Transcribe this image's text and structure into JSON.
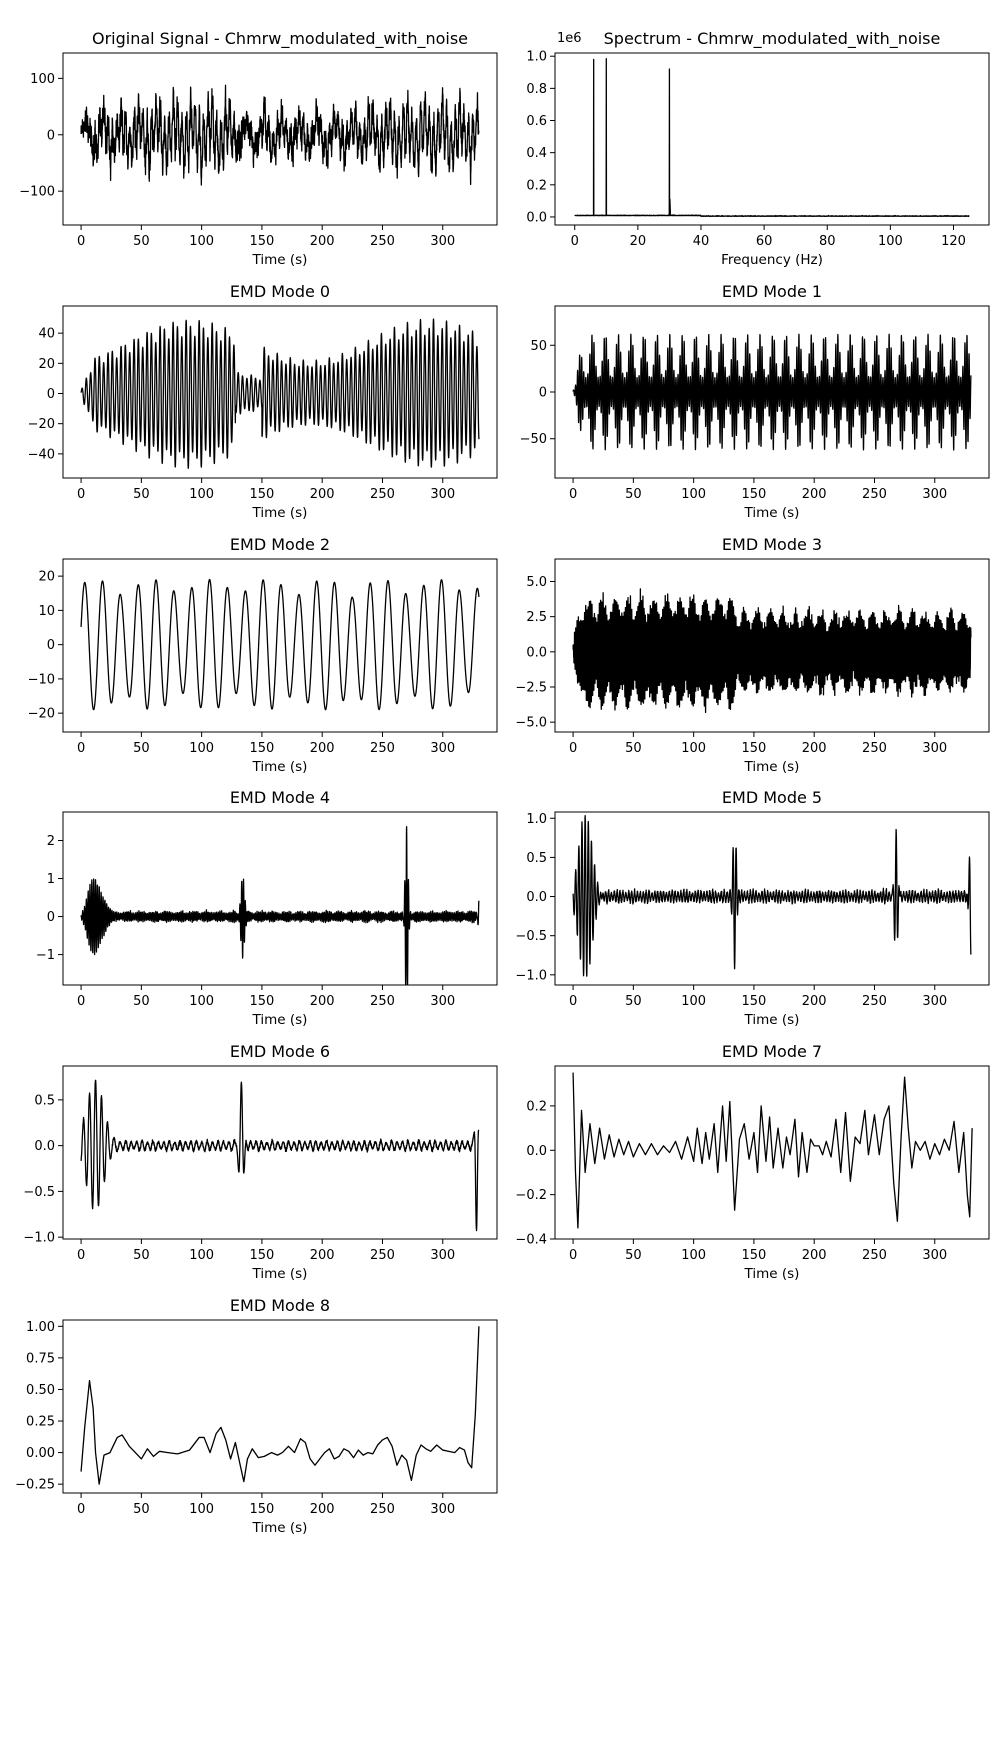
{
  "chart_data": [
    {
      "id": "orig",
      "type": "line",
      "title": "Original Signal - Chmrw_modulated_with_noise",
      "xlabel": "Time (s)",
      "ylabel": "",
      "xlim": [
        -15,
        345
      ],
      "ylim": [
        -160,
        145
      ],
      "xticks": [
        0,
        50,
        100,
        150,
        200,
        250,
        300
      ],
      "yticks": [
        -100,
        0,
        100
      ],
      "offset_text": "",
      "series": [
        {
          "kind": "sum",
          "T": 330,
          "components": [
            {
              "amp": 48,
              "period": 3.6,
              "env": "ripple:10.7:0.25"
            },
            {
              "amp": 24,
              "period": 14.8,
              "env": "slow"
            },
            {
              "amp": 20,
              "period": 1.03,
              "env": "segmented"
            },
            {
              "amp": 14,
              "period": 0,
              "env": "noise"
            }
          ]
        }
      ]
    },
    {
      "id": "spectrum",
      "type": "line",
      "title": "Spectrum - Chmrw_modulated_with_noise",
      "xlabel": "Frequency (Hz)",
      "ylabel": "",
      "xlim": [
        -6.25,
        131.25
      ],
      "ylim": [
        -0.05,
        1.02
      ],
      "xticks": [
        0,
        20,
        40,
        60,
        80,
        100,
        120
      ],
      "yticks": [
        0.0,
        0.2,
        0.4,
        0.6,
        0.8,
        1.0
      ],
      "offset_text": "1e6",
      "peaks": [
        {
          "freq": 6.0,
          "value": 0.98
        },
        {
          "freq": 10.0,
          "value": 0.985
        },
        {
          "freq": 30.0,
          "value": 0.92
        }
      ],
      "series": [
        {
          "kind": "spectrum",
          "fmax": 125
        }
      ]
    },
    {
      "id": "mode0",
      "type": "line",
      "title": "EMD Mode 0",
      "xlabel": "Time (s)",
      "ylabel": "",
      "xlim": [
        -15,
        345
      ],
      "ylim": [
        -56,
        58
      ],
      "xticks": [
        0,
        50,
        100,
        150,
        200,
        250,
        300
      ],
      "yticks": [
        -40,
        -20,
        0,
        20,
        40
      ],
      "offset_text": "",
      "series": [
        {
          "kind": "osc",
          "T": 330,
          "amp": 50,
          "period": 3.6,
          "env": "ripple:10.7:0.25"
        }
      ]
    },
    {
      "id": "mode1",
      "type": "line",
      "title": "EMD Mode 1",
      "xlabel": "Time (s)",
      "ylabel": "",
      "xlim": [
        -15,
        345
      ],
      "ylim": [
        -92,
        92
      ],
      "xticks": [
        0,
        50,
        100,
        150,
        200,
        250,
        300
      ],
      "yticks": [
        -50,
        0,
        50
      ],
      "offset_text": "",
      "series": [
        {
          "kind": "osc",
          "T": 330,
          "amp": 62,
          "period": 1.7,
          "env": "bursts:10.7"
        }
      ]
    },
    {
      "id": "mode2",
      "type": "line",
      "title": "EMD Mode 2",
      "xlabel": "Time (s)",
      "ylabel": "",
      "xlim": [
        -15,
        345
      ],
      "ylim": [
        -25.5,
        25
      ],
      "xticks": [
        0,
        50,
        100,
        150,
        200,
        250,
        300
      ],
      "yticks": [
        -20,
        -10,
        0,
        10,
        20
      ],
      "offset_text": "",
      "series": [
        {
          "kind": "osc",
          "T": 330,
          "amp": 19,
          "period": 14.8,
          "env": "slow"
        }
      ]
    },
    {
      "id": "mode3",
      "type": "line",
      "title": "EMD Mode 3",
      "xlabel": "Time (s)",
      "ylabel": "",
      "xlim": [
        -15,
        345
      ],
      "ylim": [
        -5.7,
        6.6
      ],
      "xticks": [
        0,
        50,
        100,
        150,
        200,
        250,
        300
      ],
      "yticks": [
        -5.0,
        -2.5,
        0.0,
        2.5,
        5.0
      ],
      "offset_text": "",
      "series": [
        {
          "kind": "osc",
          "T": 330,
          "amp": 4.2,
          "period": 1.03,
          "env": "segmented"
        }
      ]
    },
    {
      "id": "mode4",
      "type": "line",
      "title": "EMD Mode 4",
      "xlabel": "Time (s)",
      "ylabel": "",
      "xlim": [
        -15,
        345
      ],
      "ylim": [
        -1.8,
        2.75
      ],
      "xticks": [
        0,
        50,
        100,
        150,
        200,
        250,
        300
      ],
      "yticks": [
        -1,
        0,
        1,
        2
      ],
      "offset_text": "",
      "events": [
        {
          "t": 12,
          "amp": 1.0,
          "width": 8
        },
        {
          "t": 134,
          "amp": -1.0,
          "width": 2
        },
        {
          "t": 270,
          "amp": 2.5,
          "width": 1.6
        },
        {
          "t": 330,
          "amp": 0.5,
          "width": 1
        }
      ],
      "series": [
        {
          "kind": "noisy_events",
          "T": 330,
          "base": 0.12,
          "period": 1.4
        }
      ]
    },
    {
      "id": "mode5",
      "type": "line",
      "title": "EMD Mode 5",
      "xlabel": "Time (s)",
      "ylabel": "",
      "xlim": [
        -15,
        345
      ],
      "ylim": [
        -1.13,
        1.08
      ],
      "xticks": [
        0,
        50,
        100,
        150,
        200,
        250,
        300
      ],
      "yticks": [
        -1.0,
        -0.5,
        0.0,
        0.5,
        1.0
      ],
      "offset_text": "",
      "events": [
        {
          "t": 10,
          "amp": 1.0,
          "width": 8
        },
        {
          "t": 134,
          "amp": -0.85,
          "width": 2
        },
        {
          "t": 268,
          "amp": 0.9,
          "width": 2
        },
        {
          "t": 330,
          "amp": -0.75,
          "width": 2
        }
      ],
      "series": [
        {
          "kind": "noisy_events",
          "T": 330,
          "base": 0.07,
          "period": 2.4
        }
      ]
    },
    {
      "id": "mode6",
      "type": "line",
      "title": "EMD Mode 6",
      "xlabel": "Time (s)",
      "ylabel": "",
      "xlim": [
        -15,
        345
      ],
      "ylim": [
        -1.02,
        0.87
      ],
      "xticks": [
        0,
        50,
        100,
        150,
        200,
        250,
        300
      ],
      "yticks": [
        -1.0,
        -0.5,
        0.0,
        0.5
      ],
      "offset_text": "",
      "events": [
        {
          "t": 12,
          "amp": 0.75,
          "width": 10
        },
        {
          "t": 133,
          "amp": 0.7,
          "width": 2.5
        },
        {
          "t": 328,
          "amp": -0.9,
          "width": 1.5
        }
      ],
      "series": [
        {
          "kind": "noisy_events",
          "T": 330,
          "base": 0.05,
          "period": 4.5
        }
      ]
    },
    {
      "id": "mode7",
      "type": "line",
      "title": "EMD Mode 7",
      "xlabel": "Time (s)",
      "ylabel": "",
      "xlim": [
        -15,
        345
      ],
      "ylim": [
        -0.4,
        0.38
      ],
      "xticks": [
        0,
        50,
        100,
        150,
        200,
        250,
        300
      ],
      "yticks": [
        -0.4,
        -0.2,
        0.0,
        0.2
      ],
      "offset_text": "",
      "points": [
        [
          0,
          0.35
        ],
        [
          2,
          -0.1
        ],
        [
          4,
          -0.35
        ],
        [
          7,
          0.18
        ],
        [
          10,
          -0.1
        ],
        [
          14,
          0.12
        ],
        [
          18,
          -0.06
        ],
        [
          22,
          0.1
        ],
        [
          26,
          -0.04
        ],
        [
          30,
          0.07
        ],
        [
          34,
          -0.03
        ],
        [
          38,
          0.05
        ],
        [
          42,
          -0.02
        ],
        [
          46,
          0.04
        ],
        [
          50,
          -0.03
        ],
        [
          55,
          0.03
        ],
        [
          60,
          -0.02
        ],
        [
          65,
          0.03
        ],
        [
          70,
          -0.02
        ],
        [
          75,
          0.02
        ],
        [
          80,
          -0.01
        ],
        [
          85,
          0.04
        ],
        [
          90,
          -0.04
        ],
        [
          95,
          0.06
        ],
        [
          100,
          -0.05
        ],
        [
          103,
          0.1
        ],
        [
          107,
          -0.06
        ],
        [
          110,
          0.08
        ],
        [
          113,
          -0.04
        ],
        [
          117,
          0.12
        ],
        [
          120,
          -0.1
        ],
        [
          124,
          0.2
        ],
        [
          127,
          -0.05
        ],
        [
          130,
          0.22
        ],
        [
          134,
          -0.27
        ],
        [
          138,
          0.05
        ],
        [
          142,
          0.12
        ],
        [
          146,
          -0.04
        ],
        [
          150,
          0.08
        ],
        [
          153,
          -0.1
        ],
        [
          156,
          0.2
        ],
        [
          160,
          -0.05
        ],
        [
          163,
          0.15
        ],
        [
          166,
          -0.08
        ],
        [
          170,
          0.1
        ],
        [
          174,
          -0.08
        ],
        [
          177,
          0.06
        ],
        [
          180,
          -0.02
        ],
        [
          184,
          0.14
        ],
        [
          187,
          -0.12
        ],
        [
          190,
          0.08
        ],
        [
          194,
          -0.1
        ],
        [
          197,
          0.05
        ],
        [
          200,
          0.02
        ],
        [
          204,
          0.02
        ],
        [
          207,
          -0.02
        ],
        [
          210,
          0.04
        ],
        [
          214,
          -0.03
        ],
        [
          218,
          0.14
        ],
        [
          222,
          -0.1
        ],
        [
          226,
          0.17
        ],
        [
          230,
          -0.14
        ],
        [
          234,
          0.06
        ],
        [
          238,
          0.03
        ],
        [
          242,
          0.18
        ],
        [
          245,
          -0.02
        ],
        [
          250,
          0.16
        ],
        [
          254,
          -0.02
        ],
        [
          258,
          0.14
        ],
        [
          262,
          0.2
        ],
        [
          266,
          -0.15
        ],
        [
          269,
          -0.32
        ],
        [
          272,
          0.05
        ],
        [
          275,
          0.33
        ],
        [
          278,
          0.1
        ],
        [
          281,
          -0.08
        ],
        [
          284,
          0.04
        ],
        [
          288,
          0.0
        ],
        [
          292,
          0.04
        ],
        [
          296,
          -0.04
        ],
        [
          300,
          0.03
        ],
        [
          304,
          -0.02
        ],
        [
          308,
          0.05
        ],
        [
          312,
          0.0
        ],
        [
          316,
          0.13
        ],
        [
          320,
          -0.1
        ],
        [
          324,
          0.08
        ],
        [
          327,
          -0.2
        ],
        [
          329,
          -0.3
        ],
        [
          331,
          0.1
        ]
      ],
      "series": [
        {
          "kind": "points"
        }
      ]
    },
    {
      "id": "mode8",
      "type": "line",
      "title": "EMD Mode 8",
      "xlabel": "Time (s)",
      "ylabel": "",
      "xlim": [
        -15,
        345
      ],
      "ylim": [
        -0.32,
        1.05
      ],
      "xticks": [
        0,
        50,
        100,
        150,
        200,
        250,
        300
      ],
      "yticks": [
        -0.25,
        0.0,
        0.25,
        0.5,
        0.75,
        1.0
      ],
      "offset_text": "",
      "points": [
        [
          0,
          -0.15
        ],
        [
          3,
          0.2
        ],
        [
          7,
          0.57
        ],
        [
          10,
          0.35
        ],
        [
          12,
          0.0
        ],
        [
          15,
          -0.25
        ],
        [
          19,
          -0.02
        ],
        [
          24,
          0.0
        ],
        [
          30,
          0.12
        ],
        [
          34,
          0.14
        ],
        [
          40,
          0.05
        ],
        [
          45,
          0.0
        ],
        [
          50,
          -0.05
        ],
        [
          55,
          0.03
        ],
        [
          60,
          -0.03
        ],
        [
          65,
          0.01
        ],
        [
          72,
          0.0
        ],
        [
          80,
          -0.01
        ],
        [
          90,
          0.02
        ],
        [
          98,
          0.12
        ],
        [
          102,
          0.12
        ],
        [
          107,
          0.0
        ],
        [
          112,
          0.15
        ],
        [
          116,
          0.2
        ],
        [
          120,
          0.1
        ],
        [
          124,
          -0.05
        ],
        [
          128,
          0.08
        ],
        [
          132,
          -0.1
        ],
        [
          135,
          -0.23
        ],
        [
          138,
          -0.05
        ],
        [
          142,
          0.03
        ],
        [
          147,
          -0.04
        ],
        [
          152,
          -0.03
        ],
        [
          158,
          0.0
        ],
        [
          163,
          -0.02
        ],
        [
          167,
          0.0
        ],
        [
          172,
          0.05
        ],
        [
          177,
          0.0
        ],
        [
          182,
          0.11
        ],
        [
          186,
          0.08
        ],
        [
          190,
          -0.05
        ],
        [
          194,
          -0.1
        ],
        [
          198,
          -0.05
        ],
        [
          202,
          0.0
        ],
        [
          206,
          0.03
        ],
        [
          210,
          -0.05
        ],
        [
          214,
          -0.03
        ],
        [
          218,
          0.03
        ],
        [
          222,
          0.01
        ],
        [
          226,
          -0.04
        ],
        [
          230,
          0.02
        ],
        [
          234,
          -0.02
        ],
        [
          238,
          0.0
        ],
        [
          242,
          -0.01
        ],
        [
          246,
          0.06
        ],
        [
          250,
          0.1
        ],
        [
          254,
          0.12
        ],
        [
          258,
          0.05
        ],
        [
          262,
          -0.1
        ],
        [
          266,
          -0.02
        ],
        [
          270,
          -0.06
        ],
        [
          274,
          -0.22
        ],
        [
          278,
          -0.02
        ],
        [
          282,
          0.06
        ],
        [
          286,
          0.03
        ],
        [
          290,
          0.01
        ],
        [
          295,
          0.06
        ],
        [
          300,
          0.02
        ],
        [
          305,
          0.01
        ],
        [
          310,
          0.0
        ],
        [
          314,
          0.04
        ],
        [
          318,
          0.02
        ],
        [
          321,
          -0.08
        ],
        [
          324,
          -0.12
        ],
        [
          327,
          0.3
        ],
        [
          330,
          1.0
        ]
      ],
      "series": [
        {
          "kind": "points"
        }
      ]
    }
  ]
}
